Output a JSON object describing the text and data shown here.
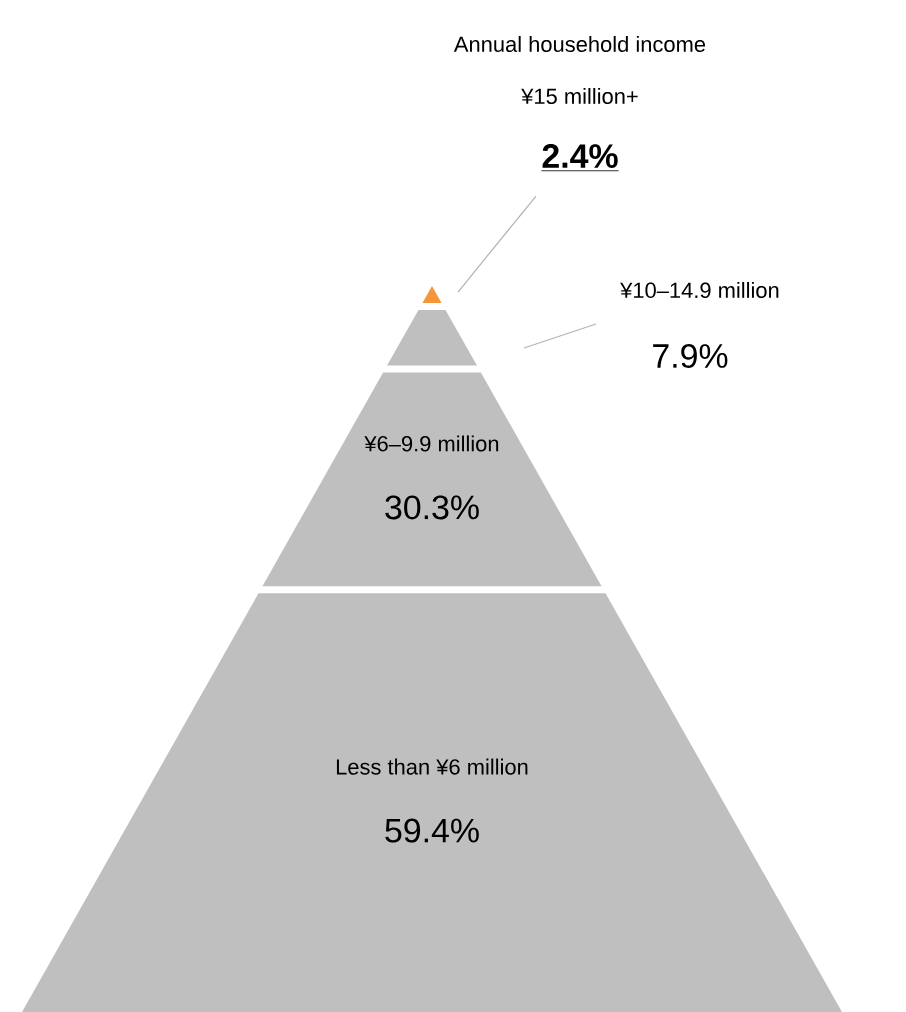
{
  "chart_data": {
    "type": "other",
    "title": "Annual household income",
    "categories": [
      "¥15 million+",
      "¥10–14.9 million",
      "¥6–9.9 million",
      "Less than ¥6 million"
    ],
    "values": [
      2.4,
      7.9,
      30.3,
      59.4
    ],
    "value_labels": [
      "2.4%",
      "7.9%",
      "30.3%",
      "59.4%"
    ],
    "colors": [
      "#f4973a",
      "#bfbfbf",
      "#bfbfbf",
      "#bfbfbf"
    ]
  }
}
